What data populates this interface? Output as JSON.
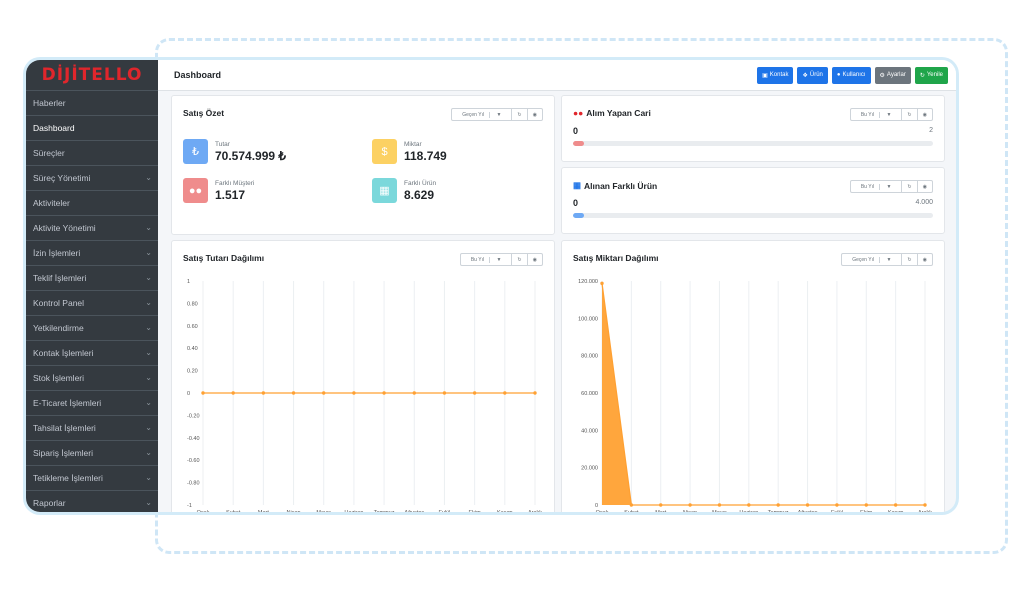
{
  "brand": {
    "logo": "DİJİTELLO"
  },
  "sidebar": {
    "items": [
      {
        "label": "Haberler",
        "chevron": false
      },
      {
        "label": "Dashboard",
        "chevron": false,
        "active": true
      },
      {
        "label": "Süreçler",
        "chevron": false
      },
      {
        "label": "Süreç Yönetimi",
        "chevron": true
      },
      {
        "label": "Aktiviteler",
        "chevron": false
      },
      {
        "label": "Aktivite Yönetimi",
        "chevron": true
      },
      {
        "label": "İzin İşlemleri",
        "chevron": true
      },
      {
        "label": "Teklif İşlemleri",
        "chevron": true
      },
      {
        "label": "Kontrol Panel",
        "chevron": true
      },
      {
        "label": "Yetkilendirme",
        "chevron": true
      },
      {
        "label": "Kontak İşlemleri",
        "chevron": true
      },
      {
        "label": "Stok İşlemleri",
        "chevron": true
      },
      {
        "label": "E-Ticaret İşlemleri",
        "chevron": true
      },
      {
        "label": "Tahsilat İşlemleri",
        "chevron": true
      },
      {
        "label": "Sipariş İşlemleri",
        "chevron": true
      },
      {
        "label": "Tetikleme İşlemleri",
        "chevron": true
      },
      {
        "label": "Raporlar",
        "chevron": true
      }
    ]
  },
  "header": {
    "title": "Dashboard",
    "buttons": [
      "Kontak",
      "Ürün",
      "Kullanıcı",
      "Ayarlar",
      "Yenile"
    ]
  },
  "satis_ozet": {
    "title": "Satış Özet",
    "filter": "Geçen Yıl",
    "stats": {
      "tutar": {
        "label": "Tutar",
        "value": "70.574.999 ₺",
        "icon": "lira-icon"
      },
      "miktar": {
        "label": "Miktar",
        "value": "118.749",
        "icon": "hand-coins-icon"
      },
      "musteri": {
        "label": "Farklı Müşteri",
        "value": "1.517",
        "icon": "users-icon"
      },
      "urun": {
        "label": "Farklı Ürün",
        "value": "8.629",
        "icon": "qrcode-icon"
      }
    }
  },
  "alim_yapan_cari": {
    "title": "Alım Yapan Cari",
    "filter": "Bu Yıl",
    "value": "0",
    "target": "2",
    "progress": 0
  },
  "alinan_farkli_urun": {
    "title": "Alınan Farklı Ürün",
    "filter": "Bu Yıl",
    "value": "0",
    "target": "4.000",
    "progress": 0
  },
  "colors": {
    "accent": "#1e74e8",
    "orange": "#ffa133",
    "sidebar": "#343a40",
    "success": "#1fa54a",
    "danger": "#e0262c"
  },
  "chart_data": [
    {
      "type": "line",
      "title": "Satış Tutarı Dağılımı",
      "filter": "Bu Yıl",
      "categories": [
        "Ocak",
        "Şubat",
        "Mart",
        "Nisan",
        "Mayıs",
        "Haziran",
        "Temmuz",
        "Ağustos",
        "Eylül",
        "Ekim",
        "Kasım",
        "Aralık"
      ],
      "yticks": [
        "1",
        "0.80",
        "0.60",
        "0.40",
        "0.20",
        "0",
        "-0.20",
        "-0.40",
        "-0.60",
        "-0.80",
        "-1"
      ],
      "ylim": [
        -1,
        1
      ],
      "series": [
        {
          "values": [
            0,
            0,
            0,
            0,
            0,
            0,
            0,
            0,
            0,
            0,
            0,
            0
          ]
        }
      ]
    },
    {
      "type": "area",
      "title": "Satış Miktarı Dağılımı",
      "filter": "Geçen Yıl",
      "categories": [
        "Ocak",
        "Şubat",
        "Mart",
        "Nisan",
        "Mayıs",
        "Haziran",
        "Temmuz",
        "Ağustos",
        "Eylül",
        "Ekim",
        "Kasım",
        "Aralık"
      ],
      "yticks": [
        "0",
        "20.000",
        "40.000",
        "60.000",
        "80.000",
        "100.000",
        "120.000"
      ],
      "ylim": [
        0,
        120000
      ],
      "series": [
        {
          "values": [
            118749,
            0,
            0,
            0,
            0,
            0,
            0,
            0,
            0,
            0,
            0,
            0
          ]
        }
      ]
    }
  ]
}
